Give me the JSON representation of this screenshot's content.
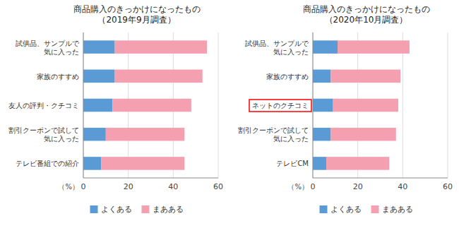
{
  "chart_data": [
    {
      "type": "bar",
      "orientation": "horizontal",
      "stacked": true,
      "grid": true,
      "legend": "bottom",
      "title": "商品購入のきっかけになったもの\n（2019年9月調査）",
      "xlabel": "（%）",
      "categories": [
        "試供品、サンプルで\n気に入った",
        "家族のすすめ",
        "友人の評判・クチコミ",
        "割引クーポンで試して\n気に入った",
        "テレビ番組での紹介"
      ],
      "series": [
        {
          "name": "よくある",
          "color": "#5b9bd5",
          "values": [
            14,
            14,
            13,
            10,
            8
          ]
        },
        {
          "name": "まあある",
          "color": "#f4a0b0",
          "values": [
            41,
            39,
            35,
            35,
            37
          ]
        }
      ],
      "xlim": [
        0,
        60
      ],
      "xticks": [
        0,
        20,
        40,
        60
      ]
    },
    {
      "type": "bar",
      "orientation": "horizontal",
      "stacked": true,
      "grid": true,
      "legend": "bottom",
      "title": "商品購入のきっかけになったもの\n（2020年10月調査）",
      "xlabel": "（%）",
      "categories": [
        "試供品、サンプルで\n気に入った",
        "家族のすすめ",
        "ネットのクチコミ",
        "割引クーポンで試して\n気に入った",
        "テレビCM"
      ],
      "series": [
        {
          "name": "よくある",
          "color": "#5b9bd5",
          "values": [
            11,
            8,
            9,
            8,
            6
          ]
        },
        {
          "name": "まあある",
          "color": "#f4a0b0",
          "values": [
            32,
            31,
            29,
            29,
            28
          ]
        }
      ],
      "xlim": [
        0,
        60
      ],
      "xticks": [
        0,
        20,
        40,
        60
      ],
      "annotations": [
        {
          "shape": "box",
          "category": "ネットのクチコミ",
          "color": "red"
        }
      ]
    }
  ]
}
